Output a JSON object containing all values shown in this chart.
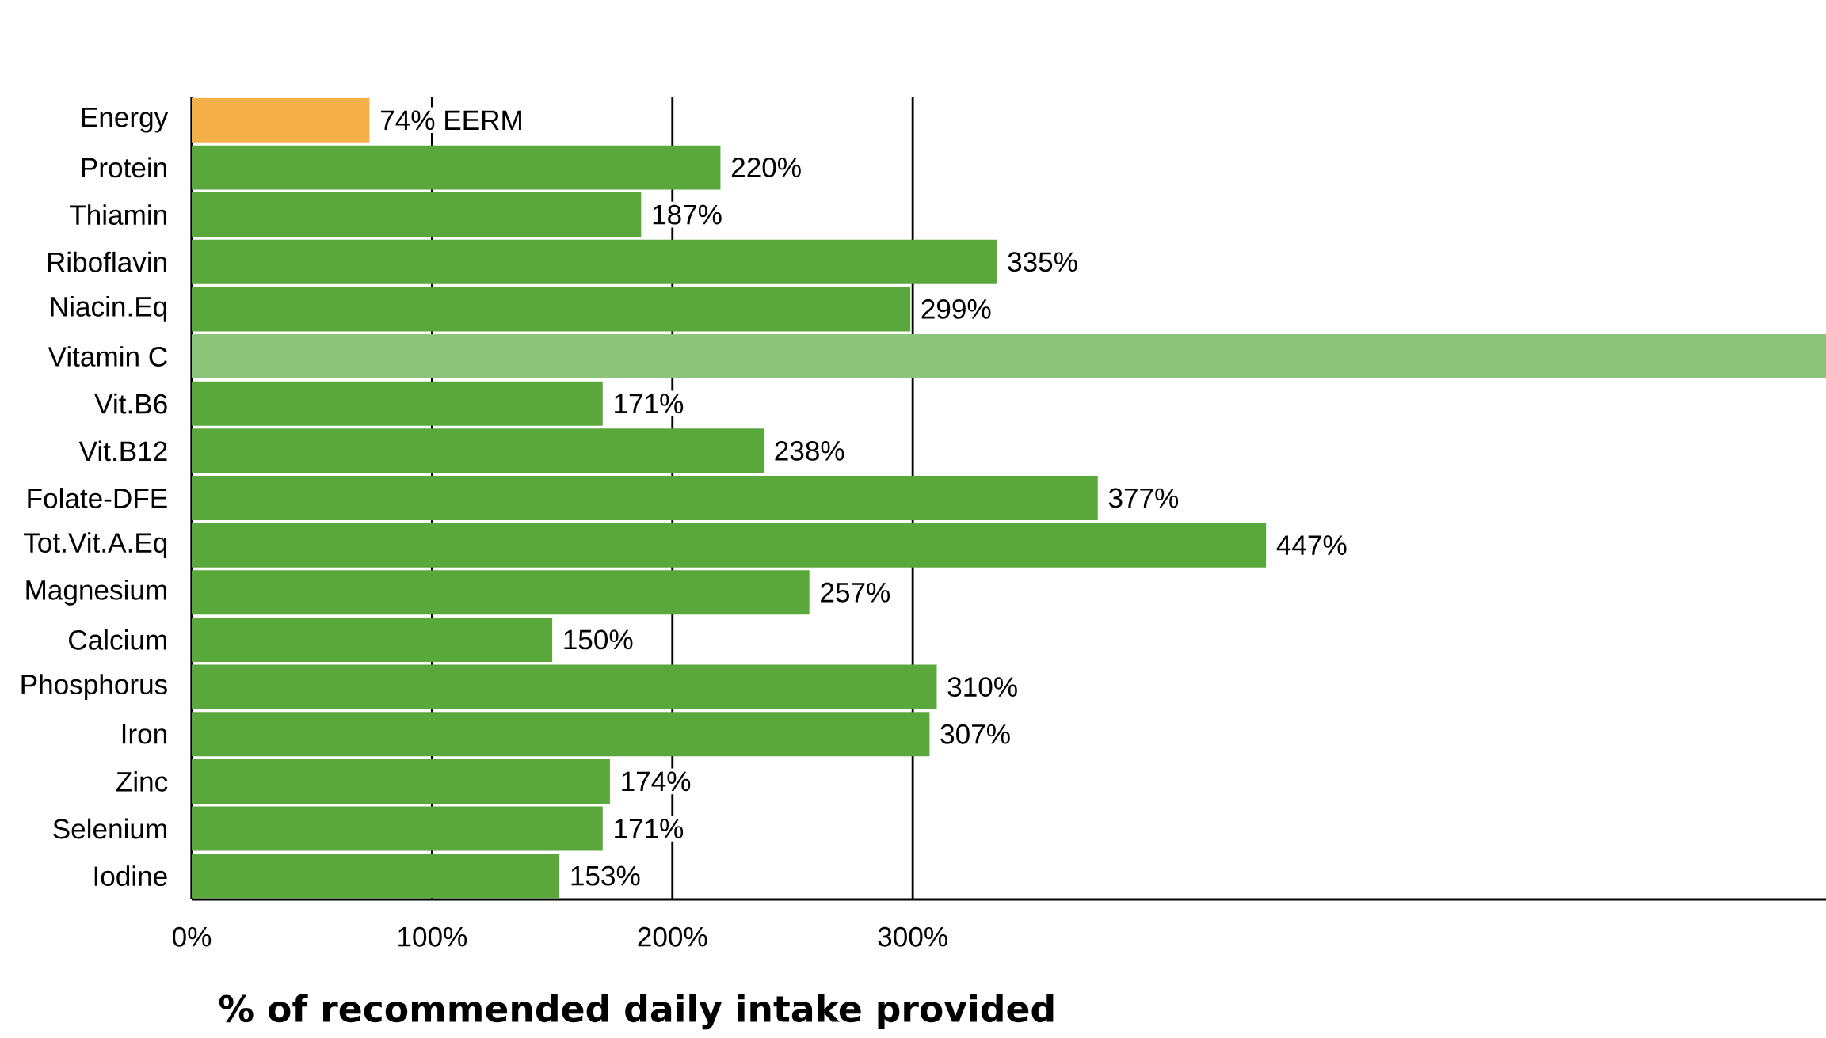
{
  "chart_data": {
    "type": "bar",
    "orientation": "horizontal",
    "xlabel": "% of recommended daily intake provided",
    "categories": [
      "Energy",
      "Protein",
      "Thiamin",
      "Riboflavin",
      "Niacin.Eq",
      "Vitamin C",
      "Vit.B6",
      "Vit.B12",
      "Folate-DFE",
      "Tot.Vit.A.Eq",
      "Magnesium",
      "Calcium",
      "Phosphorus",
      "Iron",
      "Zinc",
      "Selenium",
      "Iodine"
    ],
    "values": [
      74,
      220,
      187,
      335,
      299,
      680,
      171,
      238,
      377,
      447,
      257,
      150,
      310,
      307,
      174,
      171,
      153
    ],
    "value_labels": [
      "74% EERM",
      "220%",
      "187%",
      "335%",
      "299%",
      null,
      "171%",
      "238%",
      "377%",
      "447%",
      "257%",
      "150%",
      "310%",
      "307%",
      "174%",
      "171%",
      "153%"
    ],
    "colors": [
      "#f5b04a",
      "#5aa83c",
      "#5aa83c",
      "#5aa83c",
      "#5aa83c",
      "#8cc47a",
      "#5aa83c",
      "#5aa83c",
      "#5aa83c",
      "#5aa83c",
      "#5aa83c",
      "#5aa83c",
      "#5aa83c",
      "#5aa83c",
      "#5aa83c",
      "#5aa83c",
      "#5aa83c"
    ],
    "xlim": [
      0,
      680
    ],
    "xticks": [
      {
        "value": 0,
        "label": "0%"
      },
      {
        "value": 100,
        "label": "100%"
      },
      {
        "value": 200,
        "label": "200%"
      },
      {
        "value": 300,
        "label": "300%"
      }
    ],
    "grid": "x"
  }
}
